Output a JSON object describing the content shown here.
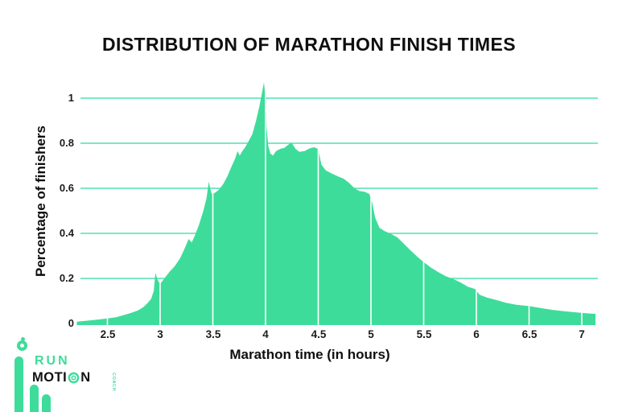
{
  "title": "DISTRIBUTION OF MARATHON FINISH TIMES",
  "colors": {
    "area_green": "#3EDC9B",
    "grid_green": "#2FD9A5",
    "text_dark": "#0f0f0f",
    "tick_white": "#ffffff"
  },
  "y_axis": {
    "label": "Percentage of finishers",
    "ticks": [
      "1",
      "0.8",
      "0.6",
      "0.4",
      "0.2",
      "0"
    ],
    "tick_values": [
      1,
      0.8,
      0.6,
      0.4,
      0.2,
      0
    ]
  },
  "x_axis": {
    "label": "Marathon time (in hours)",
    "ticks": [
      "2.5",
      "3",
      "3.5",
      "4",
      "4.5",
      "5",
      "5.5",
      "6",
      "6.5",
      "7"
    ],
    "tick_values": [
      2.5,
      3,
      3.5,
      4,
      4.5,
      5,
      5.5,
      6,
      6.5,
      7
    ]
  },
  "chart_data": {
    "type": "area",
    "title": "DISTRIBUTION OF MARATHON FINISH TIMES",
    "xlabel": "Marathon time (in hours)",
    "ylabel": "Percentage of finishers",
    "xlim": [
      2.2,
      7.15
    ],
    "ylim": [
      0,
      1.1
    ],
    "grid": "horizontal",
    "legend": "none",
    "x_units": "hours",
    "y_units": "percent of finishers",
    "notable_features": "spikes just before round goal times 3:00, 3:30 and 4:00; sharp drops after 4:00, 4:30 and 5:00; peak 1.07% just under 4 hours",
    "points": [
      [
        2.21,
        0.008
      ],
      [
        2.32,
        0.013
      ],
      [
        2.42,
        0.018
      ],
      [
        2.5,
        0.022
      ],
      [
        2.58,
        0.028
      ],
      [
        2.66,
        0.038
      ],
      [
        2.73,
        0.048
      ],
      [
        2.79,
        0.058
      ],
      [
        2.84,
        0.072
      ],
      [
        2.88,
        0.09
      ],
      [
        2.915,
        0.11
      ],
      [
        2.94,
        0.145
      ],
      [
        2.955,
        0.225
      ],
      [
        2.975,
        0.195
      ],
      [
        3.0,
        0.175
      ],
      [
        3.04,
        0.2
      ],
      [
        3.09,
        0.23
      ],
      [
        3.14,
        0.255
      ],
      [
        3.19,
        0.29
      ],
      [
        3.23,
        0.33
      ],
      [
        3.27,
        0.375
      ],
      [
        3.3,
        0.36
      ],
      [
        3.33,
        0.39
      ],
      [
        3.37,
        0.44
      ],
      [
        3.41,
        0.5
      ],
      [
        3.44,
        0.555
      ],
      [
        3.462,
        0.63
      ],
      [
        3.475,
        0.6
      ],
      [
        3.49,
        0.575
      ],
      [
        3.52,
        0.58
      ],
      [
        3.56,
        0.595
      ],
      [
        3.6,
        0.62
      ],
      [
        3.64,
        0.655
      ],
      [
        3.68,
        0.7
      ],
      [
        3.71,
        0.73
      ],
      [
        3.735,
        0.765
      ],
      [
        3.755,
        0.745
      ],
      [
        3.78,
        0.765
      ],
      [
        3.81,
        0.785
      ],
      [
        3.84,
        0.81
      ],
      [
        3.875,
        0.84
      ],
      [
        3.91,
        0.9
      ],
      [
        3.94,
        0.96
      ],
      [
        3.965,
        1.02
      ],
      [
        3.985,
        1.07
      ],
      [
        4.0,
        1.0
      ],
      [
        4.01,
        0.87
      ],
      [
        4.025,
        0.79
      ],
      [
        4.045,
        0.755
      ],
      [
        4.07,
        0.745
      ],
      [
        4.1,
        0.765
      ],
      [
        4.14,
        0.775
      ],
      [
        4.18,
        0.78
      ],
      [
        4.22,
        0.795
      ],
      [
        4.25,
        0.8
      ],
      [
        4.285,
        0.775
      ],
      [
        4.32,
        0.762
      ],
      [
        4.37,
        0.765
      ],
      [
        4.42,
        0.778
      ],
      [
        4.46,
        0.782
      ],
      [
        4.5,
        0.775
      ],
      [
        4.53,
        0.705
      ],
      [
        4.57,
        0.68
      ],
      [
        4.63,
        0.665
      ],
      [
        4.69,
        0.652
      ],
      [
        4.74,
        0.643
      ],
      [
        4.79,
        0.625
      ],
      [
        4.845,
        0.6
      ],
      [
        4.89,
        0.588
      ],
      [
        4.94,
        0.585
      ],
      [
        4.985,
        0.575
      ],
      [
        5.01,
        0.54
      ],
      [
        5.04,
        0.47
      ],
      [
        5.08,
        0.425
      ],
      [
        5.13,
        0.41
      ],
      [
        5.19,
        0.398
      ],
      [
        5.25,
        0.382
      ],
      [
        5.31,
        0.355
      ],
      [
        5.38,
        0.322
      ],
      [
        5.45,
        0.292
      ],
      [
        5.5,
        0.273
      ],
      [
        5.57,
        0.248
      ],
      [
        5.64,
        0.228
      ],
      [
        5.71,
        0.21
      ],
      [
        5.78,
        0.198
      ],
      [
        5.85,
        0.182
      ],
      [
        5.92,
        0.163
      ],
      [
        5.99,
        0.153
      ],
      [
        6.03,
        0.128
      ],
      [
        6.1,
        0.115
      ],
      [
        6.19,
        0.104
      ],
      [
        6.28,
        0.092
      ],
      [
        6.38,
        0.083
      ],
      [
        6.5,
        0.077
      ],
      [
        6.62,
        0.068
      ],
      [
        6.73,
        0.06
      ],
      [
        6.84,
        0.054
      ],
      [
        6.95,
        0.049
      ],
      [
        7.05,
        0.045
      ],
      [
        7.13,
        0.043
      ]
    ]
  },
  "logo": {
    "run": "RUN",
    "motion_pre": "MOTI",
    "motion_post": "N",
    "coach": "COACH"
  }
}
